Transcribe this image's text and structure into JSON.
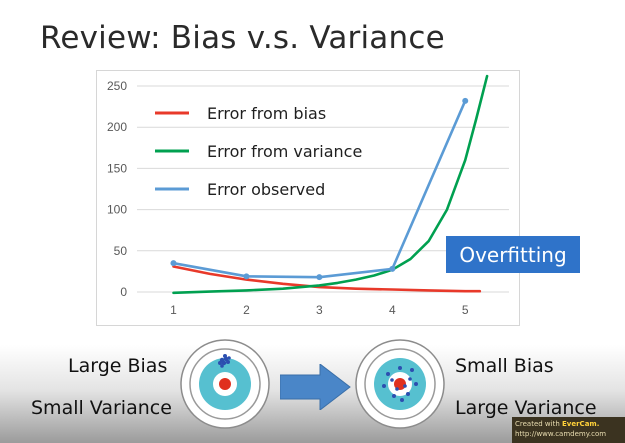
{
  "slide": {
    "title": "Review: Bias v.s. Variance"
  },
  "chart_data": {
    "type": "line",
    "x": [
      1,
      2,
      3,
      4,
      5
    ],
    "xlim": [
      0.5,
      5.6
    ],
    "ylim": [
      0,
      250
    ],
    "y_ticks": [
      0,
      50,
      100,
      150,
      200,
      250
    ],
    "x_ticks": [
      1,
      2,
      3,
      4,
      5
    ],
    "grid": "horizontal",
    "legend_position": "top-left",
    "series": [
      {
        "name": "Error from bias",
        "color": "#e8392a",
        "markers": false,
        "points": [
          [
            1,
            31
          ],
          [
            1.5,
            22
          ],
          [
            2,
            15
          ],
          [
            2.5,
            10
          ],
          [
            3,
            6
          ],
          [
            3.5,
            4
          ],
          [
            4,
            3
          ],
          [
            4.5,
            2
          ],
          [
            5,
            1
          ],
          [
            5.2,
            1
          ]
        ]
      },
      {
        "name": "Error from variance",
        "color": "#00a050",
        "markers": false,
        "points": [
          [
            1,
            -1
          ],
          [
            1.5,
            0.5
          ],
          [
            2,
            2
          ],
          [
            2.5,
            4
          ],
          [
            3,
            8
          ],
          [
            3.25,
            11
          ],
          [
            3.5,
            15
          ],
          [
            3.75,
            20
          ],
          [
            4,
            27
          ],
          [
            4.25,
            40
          ],
          [
            4.5,
            62
          ],
          [
            4.75,
            100
          ],
          [
            5,
            160
          ],
          [
            5.15,
            210
          ],
          [
            5.3,
            262
          ]
        ]
      },
      {
        "name": "Error observed",
        "color": "#5b9bd5",
        "markers": true,
        "points": [
          [
            1,
            35
          ],
          [
            2,
            19
          ],
          [
            3,
            18
          ],
          [
            4,
            28
          ],
          [
            5,
            232
          ]
        ]
      }
    ]
  },
  "badge": {
    "label": "Overfitting"
  },
  "left_target": {
    "label_top": "Large Bias",
    "label_bottom": "Small Variance"
  },
  "right_target": {
    "label_top": "Small Bias",
    "label_bottom": "Large Variance"
  },
  "arrow": {
    "color": "#4a86c8"
  },
  "watermark": {
    "line1_prefix": "Created with ",
    "brand": "EverCam.",
    "line2": "http://www.camdemy.com"
  }
}
